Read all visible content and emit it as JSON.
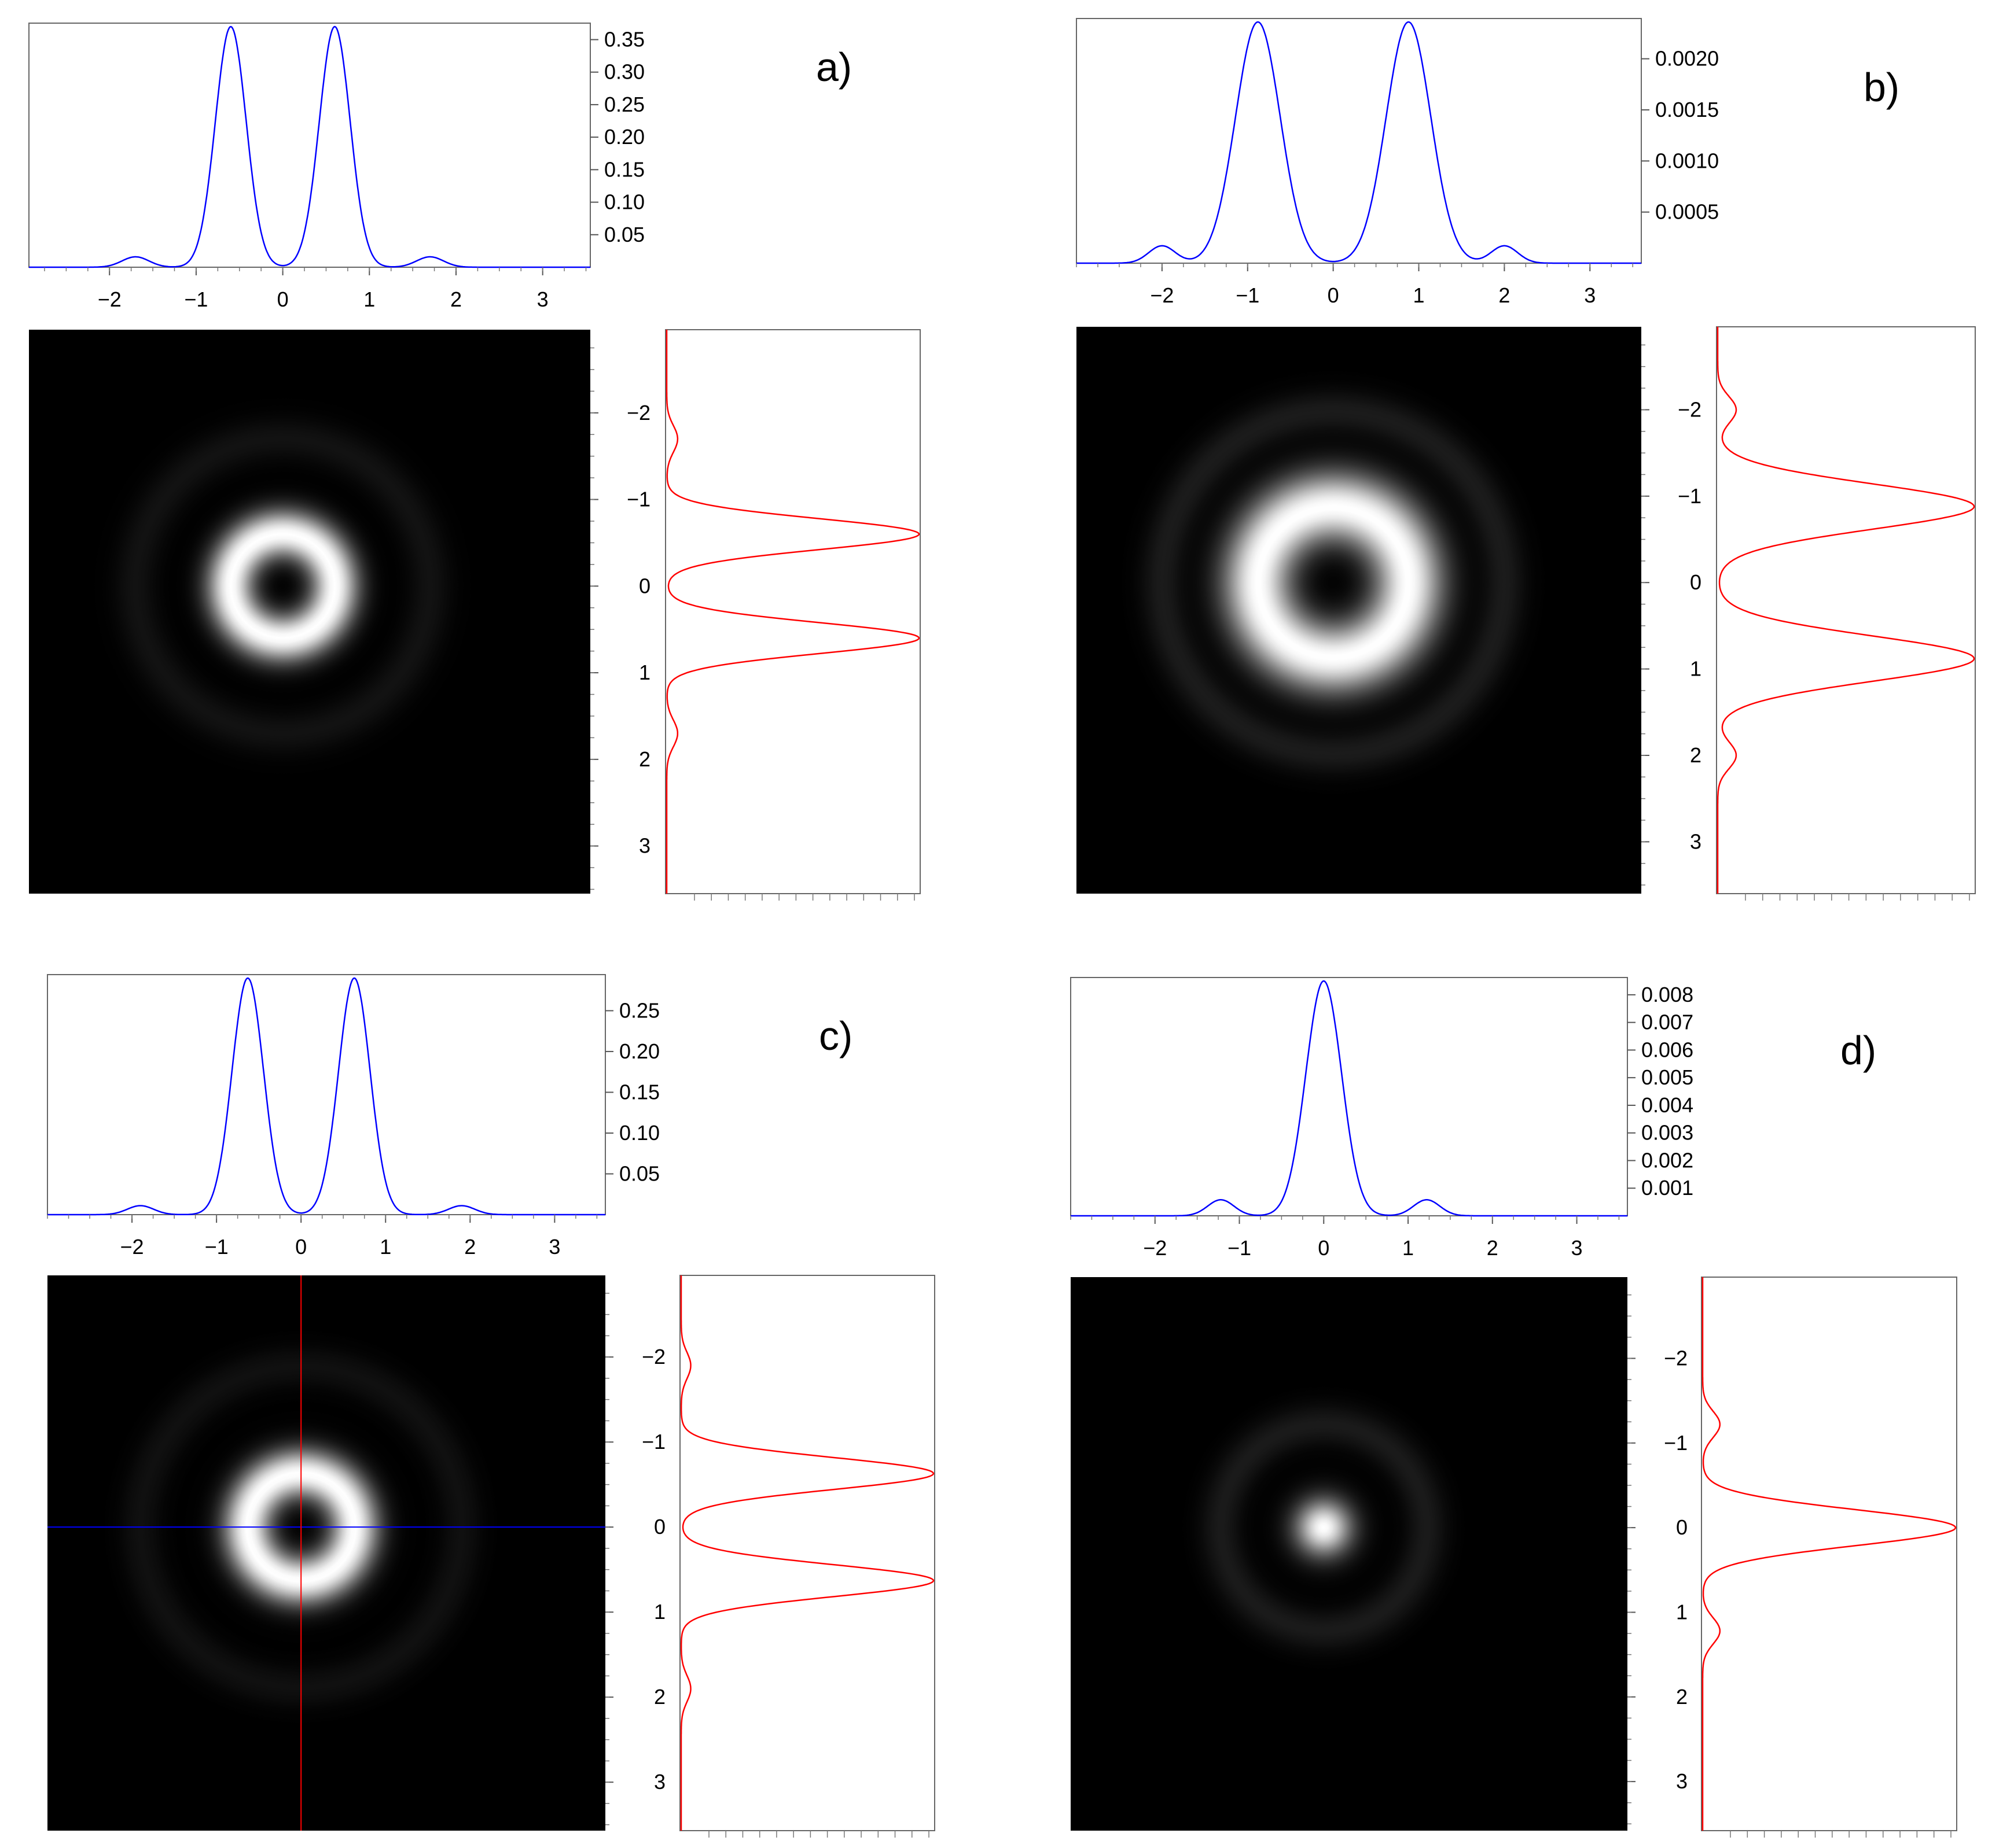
{
  "chart_data": [
    {
      "type": "line",
      "panel_label": "a)",
      "pattern": "ring",
      "top_profile": {
        "color": "#0000ff",
        "peaks_x": [
          -0.6,
          0.6
        ],
        "peak_value": 0.37,
        "side_lobes_x": [
          -1.7,
          1.7
        ],
        "side_lobe_value": 0.016,
        "xlim": [
          -2.85,
          3.6
        ],
        "ylim": [
          0,
          0.37
        ],
        "x_ticks": [
          "−2",
          "−1",
          "0",
          "1",
          "2",
          "3"
        ],
        "y_ticks": [
          "0.35",
          "0.30",
          "0.25",
          "0.20",
          "0.15",
          "0.10",
          "0.05"
        ]
      },
      "side_profile": {
        "color": "#ff0000",
        "peaks_y": [
          -0.57,
          0.57
        ],
        "y_ticks": [
          "−2",
          "−1",
          "0",
          "1",
          "2",
          "3"
        ]
      },
      "crosshair": false
    },
    {
      "type": "line",
      "panel_label": "b)",
      "pattern": "ring",
      "top_profile": {
        "color": "#0000ff",
        "peaks_x": [
          -0.88,
          0.88
        ],
        "peak_value": 0.00236,
        "side_lobes_x": [
          -2.0,
          2.0
        ],
        "side_lobe_value": 0.00017,
        "xlim": [
          -3.0,
          3.6
        ],
        "ylim": [
          0,
          0.00236
        ],
        "x_ticks": [
          "−2",
          "−1",
          "0",
          "1",
          "2",
          "3"
        ],
        "y_ticks": [
          "0.0020",
          "0.0015",
          "0.0010",
          "0.0005"
        ]
      },
      "side_profile": {
        "color": "#ff0000",
        "peaks_y": [
          -0.88,
          0.88
        ],
        "y_ticks": [
          "−2",
          "−1",
          "0",
          "1",
          "2",
          "3"
        ]
      },
      "crosshair": false
    },
    {
      "type": "line",
      "panel_label": "c)",
      "pattern": "ring",
      "top_profile": {
        "color": "#0000ff",
        "peaks_x": [
          -0.63,
          0.63
        ],
        "peak_value": 0.29,
        "side_lobes_x": [
          -1.9,
          1.9
        ],
        "side_lobe_value": 0.011,
        "xlim": [
          -3.0,
          3.6
        ],
        "ylim": [
          0,
          0.29
        ],
        "x_ticks": [
          "−2",
          "−1",
          "0",
          "1",
          "2",
          "3"
        ],
        "y_ticks": [
          "0.25",
          "0.20",
          "0.15",
          "0.10",
          "0.05"
        ]
      },
      "side_profile": {
        "color": "#ff0000",
        "peaks_y": [
          -0.63,
          0.63
        ],
        "y_ticks": [
          "−2",
          "−1",
          "0",
          "1",
          "2",
          "3"
        ]
      },
      "crosshair": true
    },
    {
      "type": "line",
      "panel_label": "d)",
      "pattern": "spot",
      "top_profile": {
        "color": "#0000ff",
        "peaks_x": [
          0
        ],
        "peak_value": 0.0085,
        "side_lobes_x": [
          -1.22,
          1.22
        ],
        "side_lobe_value": 0.00058,
        "xlim": [
          -3.0,
          3.6
        ],
        "ylim": [
          0,
          0.0085
        ],
        "x_ticks": [
          "−2",
          "−1",
          "0",
          "1",
          "2",
          "3"
        ],
        "y_ticks": [
          "0.008",
          "0.007",
          "0.006",
          "0.005",
          "0.004",
          "0.003",
          "0.002",
          "0.001"
        ]
      },
      "side_profile": {
        "color": "#ff0000",
        "peaks_y": [
          0
        ],
        "y_ticks": [
          "−2",
          "−1",
          "0",
          "1",
          "2",
          "3"
        ]
      },
      "crosshair": false
    }
  ]
}
